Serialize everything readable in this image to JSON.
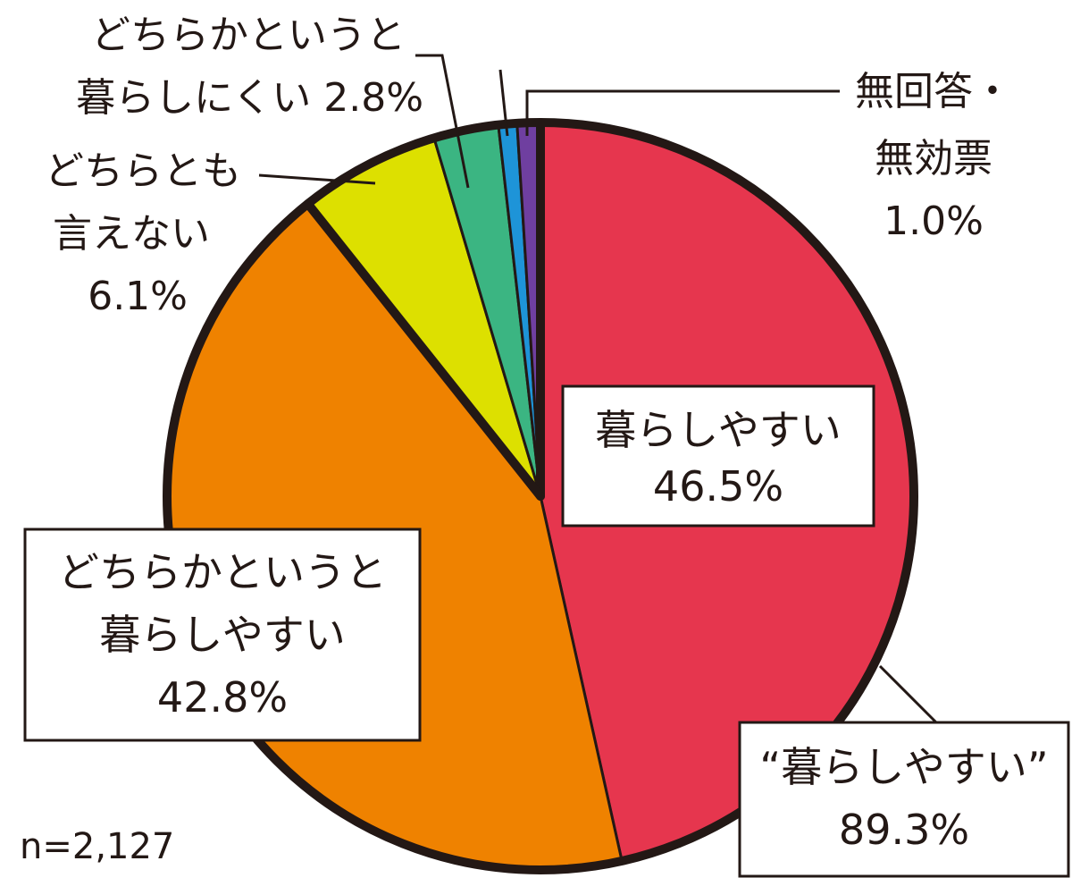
{
  "chart_data": {
    "type": "pie",
    "sample": "n=2,127",
    "slices": [
      {
        "lines": [
          "暮らしやすい",
          "46.5%"
        ],
        "value": 46.5,
        "color": "#e6364e"
      },
      {
        "lines": [
          "どちらかというと",
          "暮らしやすい",
          "42.8%"
        ],
        "value": 42.8,
        "color": "#ef8200"
      },
      {
        "lines": [
          "どちらとも",
          "言えない",
          "6.1%"
        ],
        "value": 6.1,
        "color": "#dde000"
      },
      {
        "lines": [
          "どちらかというと",
          "暮らしにくい 2.8%"
        ],
        "value": 2.8,
        "color": "#3bb582"
      },
      {
        "lines": [],
        "value": 0.8,
        "color": "#1e94d8"
      },
      {
        "lines": [
          "無回答・",
          "無効票",
          "1.0%"
        ],
        "value": 1.0,
        "color": "#6f3fa0"
      }
    ],
    "summary": {
      "lines": [
        "“暮らしやすい”",
        "89.3%"
      ]
    }
  }
}
